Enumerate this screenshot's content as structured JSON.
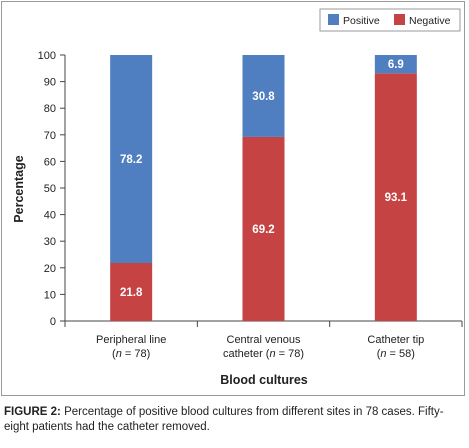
{
  "chart_data": {
    "type": "bar",
    "stacked": true,
    "categories": [
      [
        "Peripheral line",
        "(n = 78)"
      ],
      [
        "Central venous",
        "catheter (n = 78)"
      ],
      [
        "Catheter tip",
        "(n = 58)"
      ]
    ],
    "series": [
      {
        "name": "Negative",
        "color": "#c64343",
        "values": [
          21.8,
          69.2,
          93.1
        ]
      },
      {
        "name": "Positive",
        "color": "#4f7ec1",
        "values": [
          78.2,
          30.8,
          6.9
        ]
      }
    ],
    "legend": [
      "Positive",
      "Negative"
    ],
    "legend_placement": "top-right",
    "xlabel": "Blood cultures",
    "ylabel": "Percentage",
    "ylim": [
      0,
      100
    ],
    "yticks": [
      0,
      10,
      20,
      30,
      40,
      50,
      60,
      70,
      80,
      90,
      100
    ],
    "grid": false
  },
  "caption": {
    "figure_label": "FIGURE 2:",
    "text": " Percentage of positive blood cultures from different sites in 78 cases. Fifty-eight patients had the catheter removed."
  }
}
